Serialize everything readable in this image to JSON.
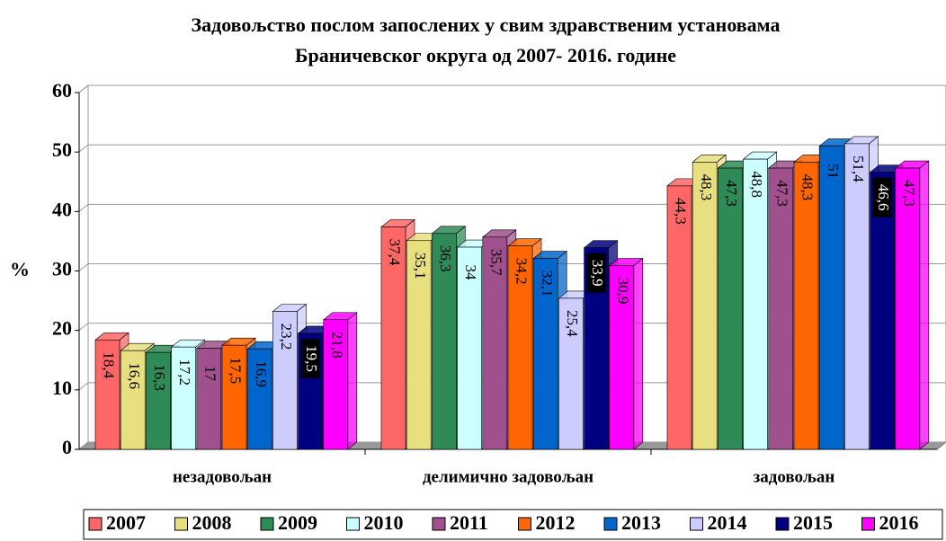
{
  "chart_data": {
    "type": "bar3d",
    "title": [
      "Задовољство послом запослених у свим здравственим установама",
      "Браничевског округа од 2007- 2016. године"
    ],
    "ylabel": "%",
    "categories": [
      "незадовољан",
      "делимично задовољан",
      "задовољан"
    ],
    "ylim": [
      0,
      60
    ],
    "yticks": [
      0,
      10,
      20,
      30,
      40,
      50,
      60
    ],
    "grid": true,
    "legend": "bottom",
    "series": [
      {
        "name": "2007",
        "color": "#ff6666",
        "values": [
          18.4,
          37.4,
          44.3
        ],
        "value_labels": [
          "18,4",
          "37,4",
          "44,3"
        ]
      },
      {
        "name": "2008",
        "color": "#e8e080",
        "values": [
          16.6,
          35.1,
          48.3
        ],
        "value_labels": [
          "16,6",
          "35,1",
          "48,3"
        ]
      },
      {
        "name": "2009",
        "color": "#2e8b57",
        "values": [
          16.3,
          36.3,
          47.3
        ],
        "value_labels": [
          "16,3",
          "36,3",
          "47,3"
        ]
      },
      {
        "name": "2010",
        "color": "#ccffff",
        "values": [
          17.2,
          34,
          48.8
        ],
        "value_labels": [
          "17,2",
          "34",
          "48,8"
        ]
      },
      {
        "name": "2011",
        "color": "#a0508c",
        "values": [
          17,
          35.7,
          47.3
        ],
        "value_labels": [
          "17",
          "35,7",
          "47,3"
        ]
      },
      {
        "name": "2012",
        "color": "#ff6600",
        "values": [
          17.5,
          34.2,
          48.3
        ],
        "value_labels": [
          "17,5",
          "34,2",
          "48,3"
        ]
      },
      {
        "name": "2013",
        "color": "#0066cc",
        "values": [
          16.9,
          32.1,
          51
        ],
        "value_labels": [
          "16,9",
          "32,1",
          "51"
        ]
      },
      {
        "name": "2014",
        "color": "#ccccff",
        "values": [
          23.2,
          25.4,
          51.4
        ],
        "value_labels": [
          "23,2",
          "25,4",
          "51,4"
        ]
      },
      {
        "name": "2015",
        "color": "#000080",
        "values": [
          19.5,
          33.9,
          46.6
        ],
        "value_labels": [
          "19,5",
          "33,9",
          "46,6"
        ]
      },
      {
        "name": "2016",
        "color": "#ff00ff",
        "values": [
          21.8,
          30.9,
          47.3
        ],
        "value_labels": [
          "21,8",
          "30,9",
          "47,3"
        ]
      }
    ]
  }
}
